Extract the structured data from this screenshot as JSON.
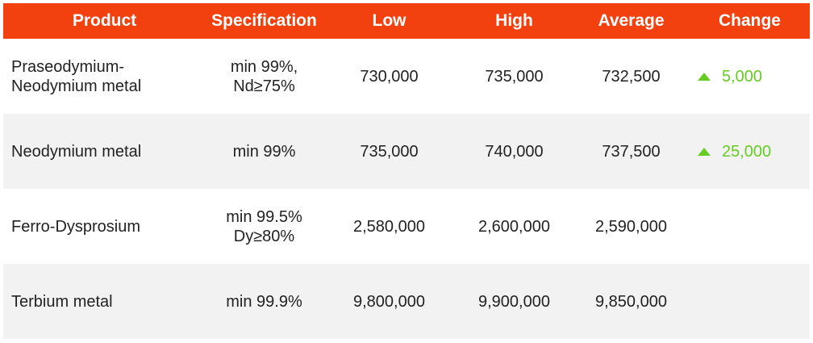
{
  "table": {
    "headers": [
      "Product",
      "Specification",
      "Low",
      "High",
      "Average",
      "Change"
    ],
    "rows": [
      [
        "Praseodymium-\nNeodymium metal",
        "min 99%,\nNd≥75%",
        "730,000",
        "735,000",
        "732,500",
        "5,000"
      ],
      [
        "Neodymium metal",
        "min 99%",
        "735,000",
        "740,000",
        "737,500",
        "25,000"
      ],
      [
        "Ferro-Dysprosium",
        "min 99.5%\nDy≥80%",
        "2,580,000",
        "2,600,000",
        "2,590,000"
      ],
      [
        "Terbium metal",
        "min 99.9%",
        "9,800,000",
        "9,900,000",
        "9,850,000"
      ]
    ]
  }
}
